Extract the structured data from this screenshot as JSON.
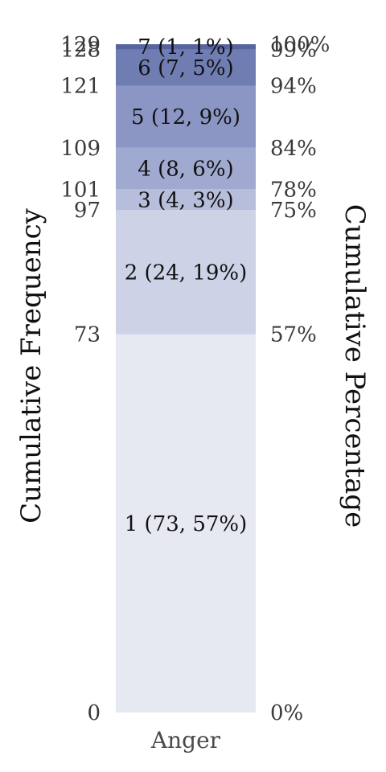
{
  "chart_data": {
    "type": "bar",
    "subtype": "stacked-cumulative",
    "categories": [
      "Anger"
    ],
    "total": 129,
    "ylim": [
      0,
      129
    ],
    "ylabel_left": "Cumulative Frequency",
    "ylabel_right": "Cumulative Percentage",
    "xlabel": "",
    "grid": false,
    "legend": "none",
    "segments": [
      {
        "level": "1",
        "count": 73,
        "pct": "57%",
        "label": "1 (73, 57%)",
        "color": "#e6e8f2"
      },
      {
        "level": "2",
        "count": 24,
        "pct": "19%",
        "label": "2 (24, 19%)",
        "color": "#cdd2e7"
      },
      {
        "level": "3",
        "count": 4,
        "pct": "3%",
        "label": "3 (4, 3%)",
        "color": "#b7bedb"
      },
      {
        "level": "4",
        "count": 8,
        "pct": "6%",
        "label": "4 (8, 6%)",
        "color": "#a0a9cf"
      },
      {
        "level": "5",
        "count": 12,
        "pct": "9%",
        "label": "5 (12, 9%)",
        "color": "#8b96c5"
      },
      {
        "level": "6",
        "count": 7,
        "pct": "5%",
        "label": "6 (7, 5%)",
        "color": "#6f7db3"
      },
      {
        "level": "7",
        "count": 1,
        "pct": "1%",
        "label": "7 (1, 1%)",
        "color": "#56649f"
      }
    ],
    "left_ticks": [
      {
        "value": 0,
        "label": "0"
      },
      {
        "value": 73,
        "label": "73"
      },
      {
        "value": 97,
        "label": "97"
      },
      {
        "value": 101,
        "label": "101"
      },
      {
        "value": 109,
        "label": "109"
      },
      {
        "value": 121,
        "label": "121"
      },
      {
        "value": 128,
        "label": "128"
      },
      {
        "value": 129,
        "label": "129"
      }
    ],
    "right_ticks": [
      {
        "value": 0,
        "label": "0%"
      },
      {
        "value": 73,
        "label": "57%"
      },
      {
        "value": 97,
        "label": "75%"
      },
      {
        "value": 101,
        "label": "78%"
      },
      {
        "value": 109,
        "label": "84%"
      },
      {
        "value": 121,
        "label": "94%"
      },
      {
        "value": 128,
        "label": "99%"
      },
      {
        "value": 129,
        "label": "100%"
      }
    ]
  }
}
